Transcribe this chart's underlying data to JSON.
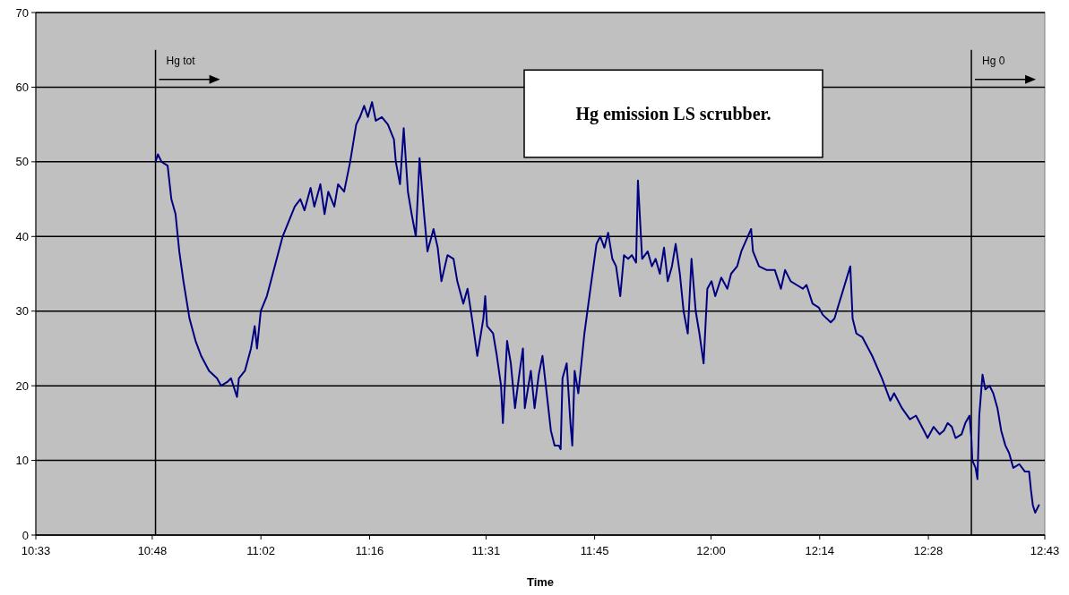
{
  "chart_data": {
    "type": "line",
    "title": "Hg emission LS scrubber.",
    "xlabel": "Time",
    "xlim": [
      10.55,
      12.7167
    ],
    "xticks": [
      {
        "value": 10.55,
        "label": "10:33"
      },
      {
        "value": 10.8,
        "label": "10:48"
      },
      {
        "value": 11.0333,
        "label": "11:02"
      },
      {
        "value": 11.2667,
        "label": "11:16"
      },
      {
        "value": 11.5167,
        "label": "11:31"
      },
      {
        "value": 11.75,
        "label": "11:45"
      },
      {
        "value": 12.0,
        "label": "12:00"
      },
      {
        "value": 12.2333,
        "label": "12:14"
      },
      {
        "value": 12.4667,
        "label": "12:28"
      },
      {
        "value": 12.7167,
        "label": "12:43"
      }
    ],
    "ylim": [
      0,
      70
    ],
    "yticks": [
      0,
      10,
      20,
      30,
      40,
      50,
      60,
      70
    ],
    "grid": "y",
    "marker": "none",
    "line_style": "solid",
    "ref_lines": [
      {
        "axis": "x",
        "value": 10.807,
        "label": "Hg tot",
        "color": "#000000"
      },
      {
        "axis": "x",
        "value": 12.559,
        "label": "Hg 0",
        "color": "#000000"
      }
    ],
    "series": [
      {
        "color": "#000080",
        "x": [
          10.807,
          10.812,
          10.82,
          10.833,
          10.841,
          10.85,
          10.858,
          10.867,
          10.88,
          10.893,
          10.905,
          10.922,
          10.939,
          10.948,
          10.961,
          10.969,
          10.982,
          10.986,
          10.999,
          11.012,
          11.02,
          11.025,
          11.033,
          11.046,
          11.063,
          11.08,
          11.093,
          11.106,
          11.118,
          11.127,
          11.14,
          11.148,
          11.161,
          11.17,
          11.178,
          11.191,
          11.199,
          11.212,
          11.225,
          11.238,
          11.246,
          11.255,
          11.263,
          11.272,
          11.28,
          11.293,
          11.306,
          11.319,
          11.323,
          11.332,
          11.34,
          11.349,
          11.357,
          11.366,
          11.374,
          11.383,
          11.391,
          11.404,
          11.413,
          11.421,
          11.434,
          11.447,
          11.455,
          11.468,
          11.477,
          11.489,
          11.498,
          11.511,
          11.515,
          11.519,
          11.532,
          11.54,
          11.549,
          11.553,
          11.562,
          11.57,
          11.579,
          11.587,
          11.596,
          11.6,
          11.613,
          11.621,
          11.63,
          11.638,
          11.647,
          11.656,
          11.664,
          11.673,
          11.677,
          11.681,
          11.69,
          11.698,
          11.702,
          11.707,
          11.715,
          11.728,
          11.741,
          11.754,
          11.762,
          11.771,
          11.779,
          11.788,
          11.796,
          11.805,
          11.813,
          11.822,
          11.83,
          11.839,
          11.843,
          11.852,
          11.864,
          11.873,
          11.881,
          11.89,
          11.899,
          11.907,
          11.916,
          11.924,
          11.933,
          11.941,
          11.95,
          11.958,
          11.967,
          11.975,
          11.984,
          11.992,
          12.001,
          12.009,
          12.022,
          12.035,
          12.043,
          12.056,
          12.065,
          12.086,
          12.09,
          12.103,
          12.12,
          12.137,
          12.15,
          12.159,
          12.171,
          12.184,
          12.197,
          12.205,
          12.218,
          12.231,
          12.24,
          12.257,
          12.265,
          12.299,
          12.304,
          12.312,
          12.325,
          12.346,
          12.367,
          12.385,
          12.393,
          12.41,
          12.427,
          12.44,
          12.457,
          12.465,
          12.478,
          12.491,
          12.5,
          12.508,
          12.517,
          12.525,
          12.538,
          12.546,
          12.555,
          12.559,
          12.561,
          12.568,
          12.572,
          12.576,
          12.581,
          12.583,
          12.589,
          12.598,
          12.606,
          12.615,
          12.623,
          12.632,
          12.64,
          12.649,
          12.662,
          12.674,
          12.683,
          12.687,
          12.691,
          12.696,
          12.704
        ],
        "values": [
          50,
          51,
          50,
          49.5,
          45,
          43,
          38,
          34,
          29,
          26,
          24,
          22,
          21,
          20,
          20.5,
          21,
          18.5,
          21,
          22,
          25,
          28,
          25,
          30,
          32,
          36,
          40,
          42,
          44,
          45,
          43.5,
          46.5,
          44,
          47,
          43,
          46,
          44,
          47,
          46,
          50,
          55,
          56,
          57.5,
          56,
          58,
          55.5,
          56,
          55,
          53,
          50,
          47,
          54.5,
          46,
          43,
          40,
          50.5,
          43.5,
          38,
          41,
          38.5,
          34,
          37.5,
          37,
          34,
          31,
          33,
          28,
          24,
          29,
          32,
          28,
          27,
          24,
          20,
          15,
          26,
          23,
          17,
          21,
          25,
          17,
          22,
          17,
          21.5,
          24,
          19,
          14,
          12,
          12,
          11.5,
          21,
          23,
          15,
          12,
          22,
          19,
          27,
          33,
          39,
          40,
          38.5,
          40.5,
          37,
          36,
          32,
          37.5,
          37,
          37.5,
          36.5,
          47.5,
          37,
          38,
          36,
          37,
          35,
          38.5,
          34,
          36,
          39,
          35,
          30,
          27,
          37,
          30,
          27,
          23,
          33,
          34,
          32,
          34.5,
          33,
          35,
          36,
          38,
          41,
          38,
          36,
          35.5,
          35.5,
          33,
          35.5,
          34,
          33.5,
          33,
          33.5,
          31,
          30.5,
          29.5,
          28.5,
          29,
          36,
          29,
          27,
          26.5,
          24,
          21,
          18,
          19,
          17,
          15.5,
          16,
          14,
          13,
          14.5,
          13.5,
          14,
          15,
          14.5,
          13,
          13.5,
          15,
          16,
          13,
          10,
          9,
          7.5,
          16,
          20,
          21.5,
          19.5,
          20,
          19,
          17,
          14,
          12,
          11,
          9,
          9.5,
          8.5,
          8.5,
          6,
          4,
          3,
          4
        ]
      }
    ]
  }
}
